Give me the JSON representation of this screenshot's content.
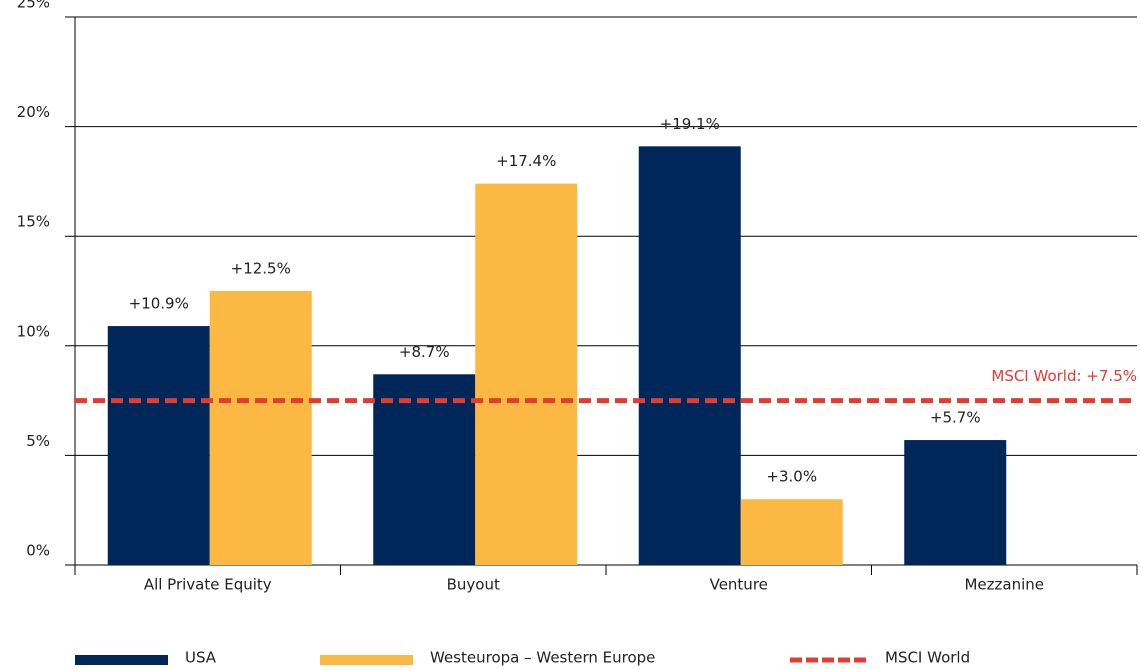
{
  "chart_data": {
    "type": "bar",
    "categories": [
      "All Private Equity",
      "Buyout",
      "Venture",
      "Mezzanine"
    ],
    "series": [
      {
        "name": "USA",
        "color": "#00275a",
        "values": [
          10.9,
          8.7,
          19.1,
          5.7
        ],
        "value_labels": [
          "+10.9%",
          "+8.7%",
          "+19.1%",
          "+5.7%"
        ]
      },
      {
        "name": "Westeuropa – Western Europe",
        "color": "#fbb843",
        "values": [
          12.5,
          17.4,
          3.0,
          null
        ],
        "value_labels": [
          "+12.5%",
          "+17.4%",
          "+3.0%",
          null
        ]
      }
    ],
    "reference_line": {
      "name": "MSCI World",
      "value": 7.5,
      "label": "MSCI World: +7.5%",
      "color": "#e03c31"
    },
    "ylim": [
      0,
      25
    ],
    "yticks": [
      {
        "value": 0,
        "label": "0%"
      },
      {
        "value": 5,
        "label": "5%"
      },
      {
        "value": 10,
        "label": "10%"
      },
      {
        "value": 15,
        "label": "15%"
      },
      {
        "value": 20,
        "label": "20%"
      },
      {
        "value": 25,
        "label": "25%"
      }
    ],
    "grid": true,
    "legend": "bottom"
  }
}
